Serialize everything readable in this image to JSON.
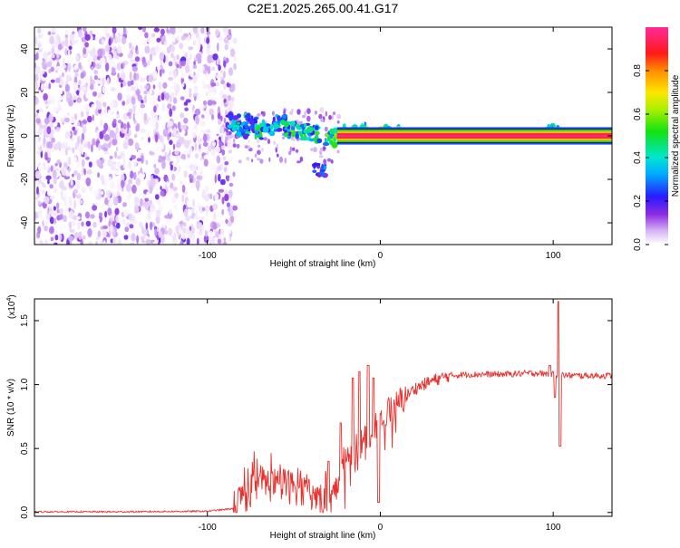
{
  "title": "C2E1.2025.265.00.41.G17",
  "chart_data": [
    {
      "type": "heatmap",
      "name": "spectrogram",
      "xlabel": "Height of straight line (km)",
      "ylabel": "Frequency (Hz)",
      "xlim": [
        -200,
        134
      ],
      "ylim": [
        -50,
        50
      ],
      "xticks": [
        -100,
        0,
        100
      ],
      "xtick_labels": [
        "-100",
        "0",
        "100"
      ],
      "yticks": [
        -40,
        -20,
        0,
        20,
        40
      ],
      "ytick_labels": [
        "-40",
        "-20",
        "0",
        "20",
        "40"
      ],
      "noise_region_km": [
        -200,
        -88
      ],
      "signal_line_hz": 0,
      "signal_start_km": -25,
      "blob_clusters": [
        {
          "x": -85,
          "y": 6,
          "amp": 0.35
        },
        {
          "x": -80,
          "y": 3,
          "amp": 0.45
        },
        {
          "x": -75,
          "y": 6,
          "amp": 0.4
        },
        {
          "x": -70,
          "y": 2,
          "amp": 0.5
        },
        {
          "x": -65,
          "y": 4,
          "amp": 0.45
        },
        {
          "x": -58,
          "y": 6,
          "amp": 0.5
        },
        {
          "x": -52,
          "y": 3,
          "amp": 0.55
        },
        {
          "x": -45,
          "y": 2,
          "amp": 0.5
        },
        {
          "x": -38,
          "y": 1,
          "amp": 0.5
        },
        {
          "x": -35,
          "y": -15,
          "amp": 0.3
        },
        {
          "x": -28,
          "y": -1,
          "amp": 0.6
        },
        {
          "x": -18,
          "y": 1,
          "amp": 0.6
        },
        {
          "x": -8,
          "y": 2,
          "amp": 0.75
        },
        {
          "x": 0,
          "y": 1,
          "amp": 0.8
        },
        {
          "x": 8,
          "y": 1,
          "amp": 0.7
        },
        {
          "x": 100,
          "y": 1,
          "amp": 0.5
        }
      ]
    },
    {
      "type": "line",
      "name": "snr",
      "xlabel": "Height of straight line (km)",
      "ylabel": "SNR (10 * v/v)",
      "y_scale_label": "(x10",
      "y_scale_exp": "4",
      "xlim": [
        -200,
        134
      ],
      "ylim": [
        -0.03,
        1.67
      ],
      "xticks": [
        -100,
        0,
        100
      ],
      "xtick_labels": [
        "-100",
        "0",
        "100"
      ],
      "yticks": [
        0.0,
        0.5,
        1.0,
        1.5
      ],
      "ytick_labels": [
        "0.0",
        "0.5",
        "1.0",
        "1.5"
      ],
      "color": "#e8312d",
      "baseline": [
        [
          -200,
          0.005
        ],
        [
          -150,
          0.005
        ],
        [
          -100,
          0.01
        ],
        [
          -85,
          0.03
        ],
        [
          -80,
          0.1
        ],
        [
          -70,
          0.25
        ],
        [
          -60,
          0.2
        ],
        [
          -50,
          0.2
        ],
        [
          -40,
          0.15
        ],
        [
          -30,
          0.05
        ],
        [
          -25,
          0.2
        ],
        [
          -20,
          0.45
        ],
        [
          -10,
          0.55
        ],
        [
          -5,
          0.6
        ],
        [
          0,
          0.75
        ],
        [
          10,
          0.85
        ],
        [
          20,
          0.97
        ],
        [
          30,
          1.03
        ],
        [
          40,
          1.07
        ],
        [
          50,
          1.08
        ],
        [
          70,
          1.08
        ],
        [
          90,
          1.09
        ],
        [
          100,
          1.08
        ],
        [
          110,
          1.07
        ],
        [
          134,
          1.07
        ]
      ],
      "spikes": [
        {
          "x": -30,
          "y": 0.4
        },
        {
          "x": -23,
          "y": 0.7
        },
        {
          "x": -16,
          "y": 1.05
        },
        {
          "x": -12,
          "y": 1.1
        },
        {
          "x": -7,
          "y": 1.15
        },
        {
          "x": -4,
          "y": 1.05
        },
        {
          "x": -1,
          "y": 0.08
        },
        {
          "x": 98,
          "y": 1.15
        },
        {
          "x": 101,
          "y": 0.9
        },
        {
          "x": 103,
          "y": 1.65
        },
        {
          "x": 104,
          "y": 0.52
        }
      ]
    }
  ],
  "colorbar": {
    "label": "Normalized spectral amplitude",
    "ticks": [
      0.0,
      0.2,
      0.4,
      0.6,
      0.8
    ],
    "tick_labels": [
      "0.0",
      "0.2",
      "0.4",
      "0.6",
      "0.8"
    ],
    "range": [
      0,
      1
    ]
  }
}
